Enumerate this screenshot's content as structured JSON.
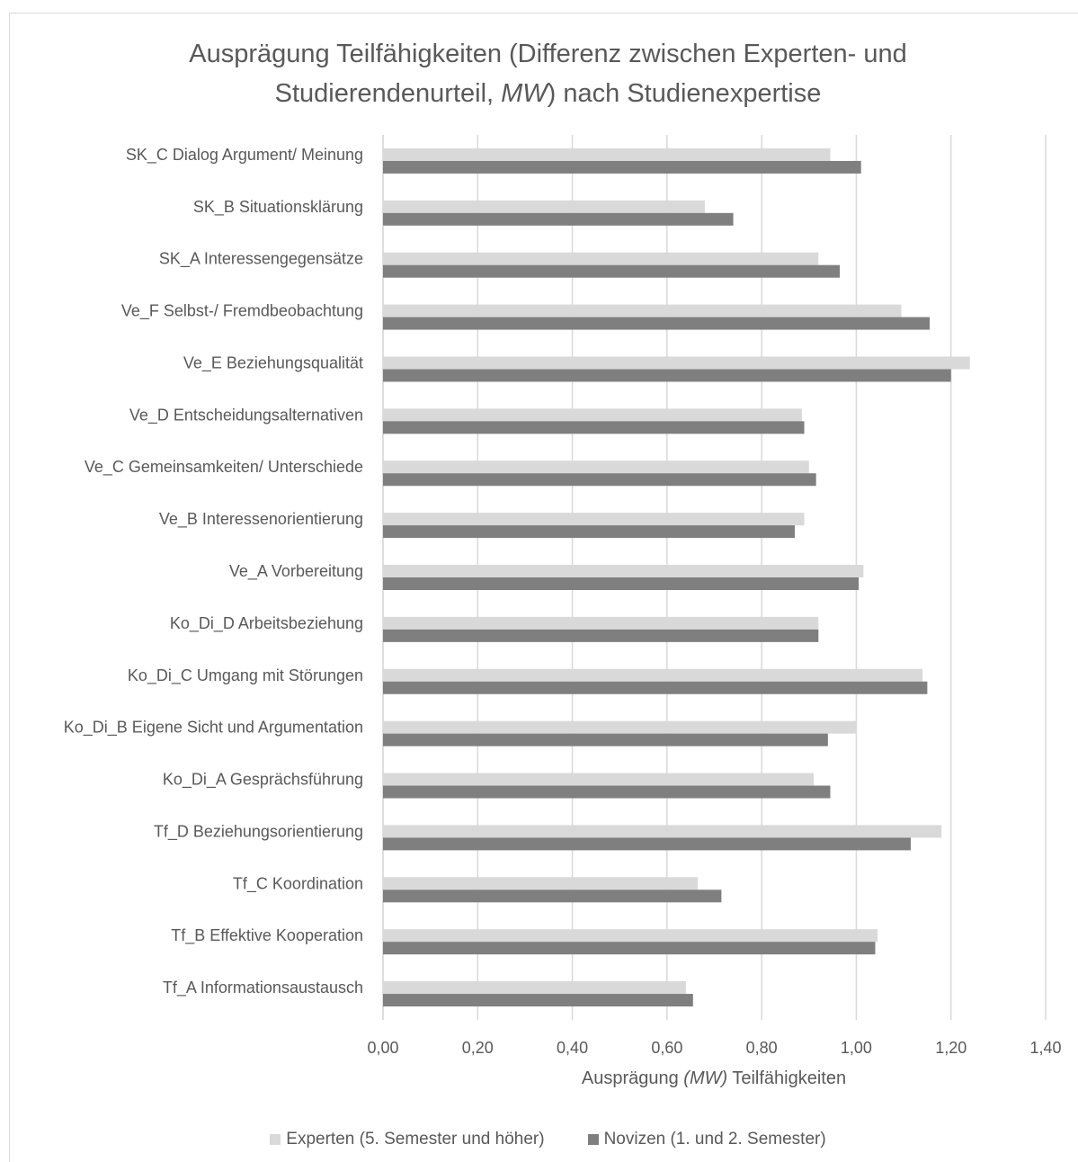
{
  "chart_data": {
    "type": "bar",
    "orientation": "horizontal",
    "title_line1": "Ausprägung Teilfähigkeiten (Differenz zwischen Experten- und",
    "title_line2_pre": "Studierendenurteil, ",
    "title_line2_em": "MW",
    "title_line2_post": ") nach Studienexpertise",
    "xlabel_pre": "Ausprägung ",
    "xlabel_em": "(MW)",
    "xlabel_post": " Teilfähigkeiten",
    "xlim": [
      0,
      1.4
    ],
    "xticks": [
      "0,00",
      "0,20",
      "0,40",
      "0,60",
      "0,80",
      "1,00",
      "1,20",
      "1,40"
    ],
    "grid": true,
    "legend_position": "bottom",
    "categories": [
      "SK_C Dialog Argument/ Meinung",
      "SK_B Situationsklärung",
      "SK_A Interessengegensätze",
      "Ve_F Selbst-/ Fremdbeobachtung",
      "Ve_E Beziehungsqualität",
      "Ve_D Entscheidungsalternativen",
      "Ve_C Gemeinsamkeiten/ Unterschiede",
      "Ve_B Interessenorientierung",
      "Ve_A Vorbereitung",
      "Ko_Di_D Arbeitsbeziehung",
      "Ko_Di_C Umgang mit Störungen",
      "Ko_Di_B Eigene Sicht und Argumentation",
      "Ko_Di_A Gesprächsführung",
      "Tf_D Beziehungsorientierung",
      "Tf_C Koordination",
      "Tf_B Effektive Kooperation",
      "Tf_A Informationsaustausch"
    ],
    "series": [
      {
        "name": "Experten (5. Semester und höher)",
        "color": "#d9d9d9",
        "values": [
          0.945,
          0.68,
          0.92,
          1.095,
          1.24,
          0.885,
          0.9,
          0.89,
          1.015,
          0.92,
          1.14,
          1.0,
          0.91,
          1.18,
          0.665,
          1.045,
          0.64
        ]
      },
      {
        "name": "Novizen (1. und 2. Semester)",
        "color": "#7f7f7f",
        "values": [
          1.01,
          0.74,
          0.965,
          1.155,
          1.2,
          0.89,
          0.915,
          0.87,
          1.005,
          0.92,
          1.15,
          0.94,
          0.945,
          1.115,
          0.715,
          1.04,
          0.655
        ]
      }
    ]
  }
}
